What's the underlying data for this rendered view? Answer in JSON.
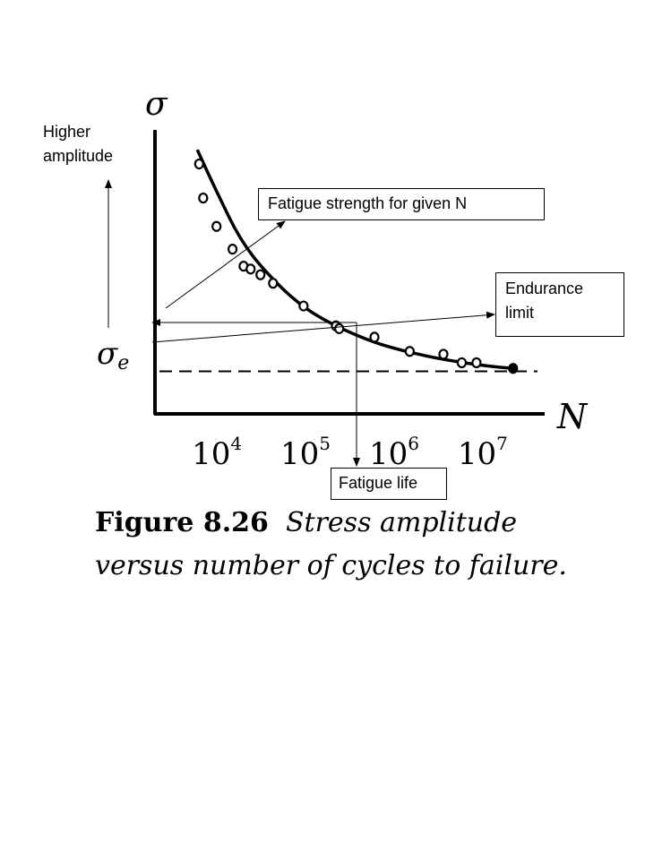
{
  "chart_data": {
    "type": "scatter",
    "title": "",
    "xlabel": "N",
    "ylabel": "σ",
    "x_scale": "log",
    "xlim": [
      2000,
      50000000
    ],
    "x_ticks": [
      {
        "value": 10000,
        "base": "10",
        "exp": "4"
      },
      {
        "value": 100000,
        "base": "10",
        "exp": "5"
      },
      {
        "value": 1000000,
        "base": "10",
        "exp": "6"
      },
      {
        "value": 10000000,
        "base": "10",
        "exp": "7"
      }
    ],
    "ylim": [
      0,
      10
    ],
    "points": [
      {
        "x": 6300,
        "y": 8.8
      },
      {
        "x": 7000,
        "y": 7.6
      },
      {
        "x": 9900,
        "y": 6.6
      },
      {
        "x": 15000,
        "y": 5.8
      },
      {
        "x": 20000,
        "y": 5.2
      },
      {
        "x": 24000,
        "y": 5.1
      },
      {
        "x": 31000,
        "y": 4.9
      },
      {
        "x": 43000,
        "y": 4.6
      },
      {
        "x": 95000,
        "y": 3.8
      },
      {
        "x": 220000,
        "y": 3.1
      },
      {
        "x": 240000,
        "y": 3.0
      },
      {
        "x": 600000,
        "y": 2.7
      },
      {
        "x": 1500000,
        "y": 2.2
      },
      {
        "x": 3600000,
        "y": 2.1
      },
      {
        "x": 5800000,
        "y": 1.8
      },
      {
        "x": 8500000,
        "y": 1.8
      },
      {
        "x": 22000000,
        "y": 1.6
      }
    ],
    "fit_curve": [
      {
        "x": 6000,
        "y": 9.3
      },
      {
        "x": 10000,
        "y": 7.8
      },
      {
        "x": 20000,
        "y": 5.9
      },
      {
        "x": 50000,
        "y": 4.5
      },
      {
        "x": 100000,
        "y": 3.7
      },
      {
        "x": 200000,
        "y": 3.15
      },
      {
        "x": 500000,
        "y": 2.6
      },
      {
        "x": 1000000,
        "y": 2.3
      },
      {
        "x": 3000000,
        "y": 1.95
      },
      {
        "x": 10000000,
        "y": 1.7
      },
      {
        "x": 22000000,
        "y": 1.6
      }
    ],
    "endurance_limit": {
      "label": "σ",
      "subscript": "e",
      "y": 1.5
    },
    "grid": false,
    "legend": "none"
  },
  "annotations": {
    "fatigue_strength": "Fatigue strength for given N",
    "endurance_limit_line1": "Endurance",
    "endurance_limit_line2": "limit",
    "fatigue_life": "Fatigue life",
    "higher_line1": "Higher",
    "higher_line2": "amplitude"
  },
  "caption": {
    "number": "Figure 8.26",
    "line1": "Stress amplitude",
    "line2": "versus number of cycles to failure."
  }
}
